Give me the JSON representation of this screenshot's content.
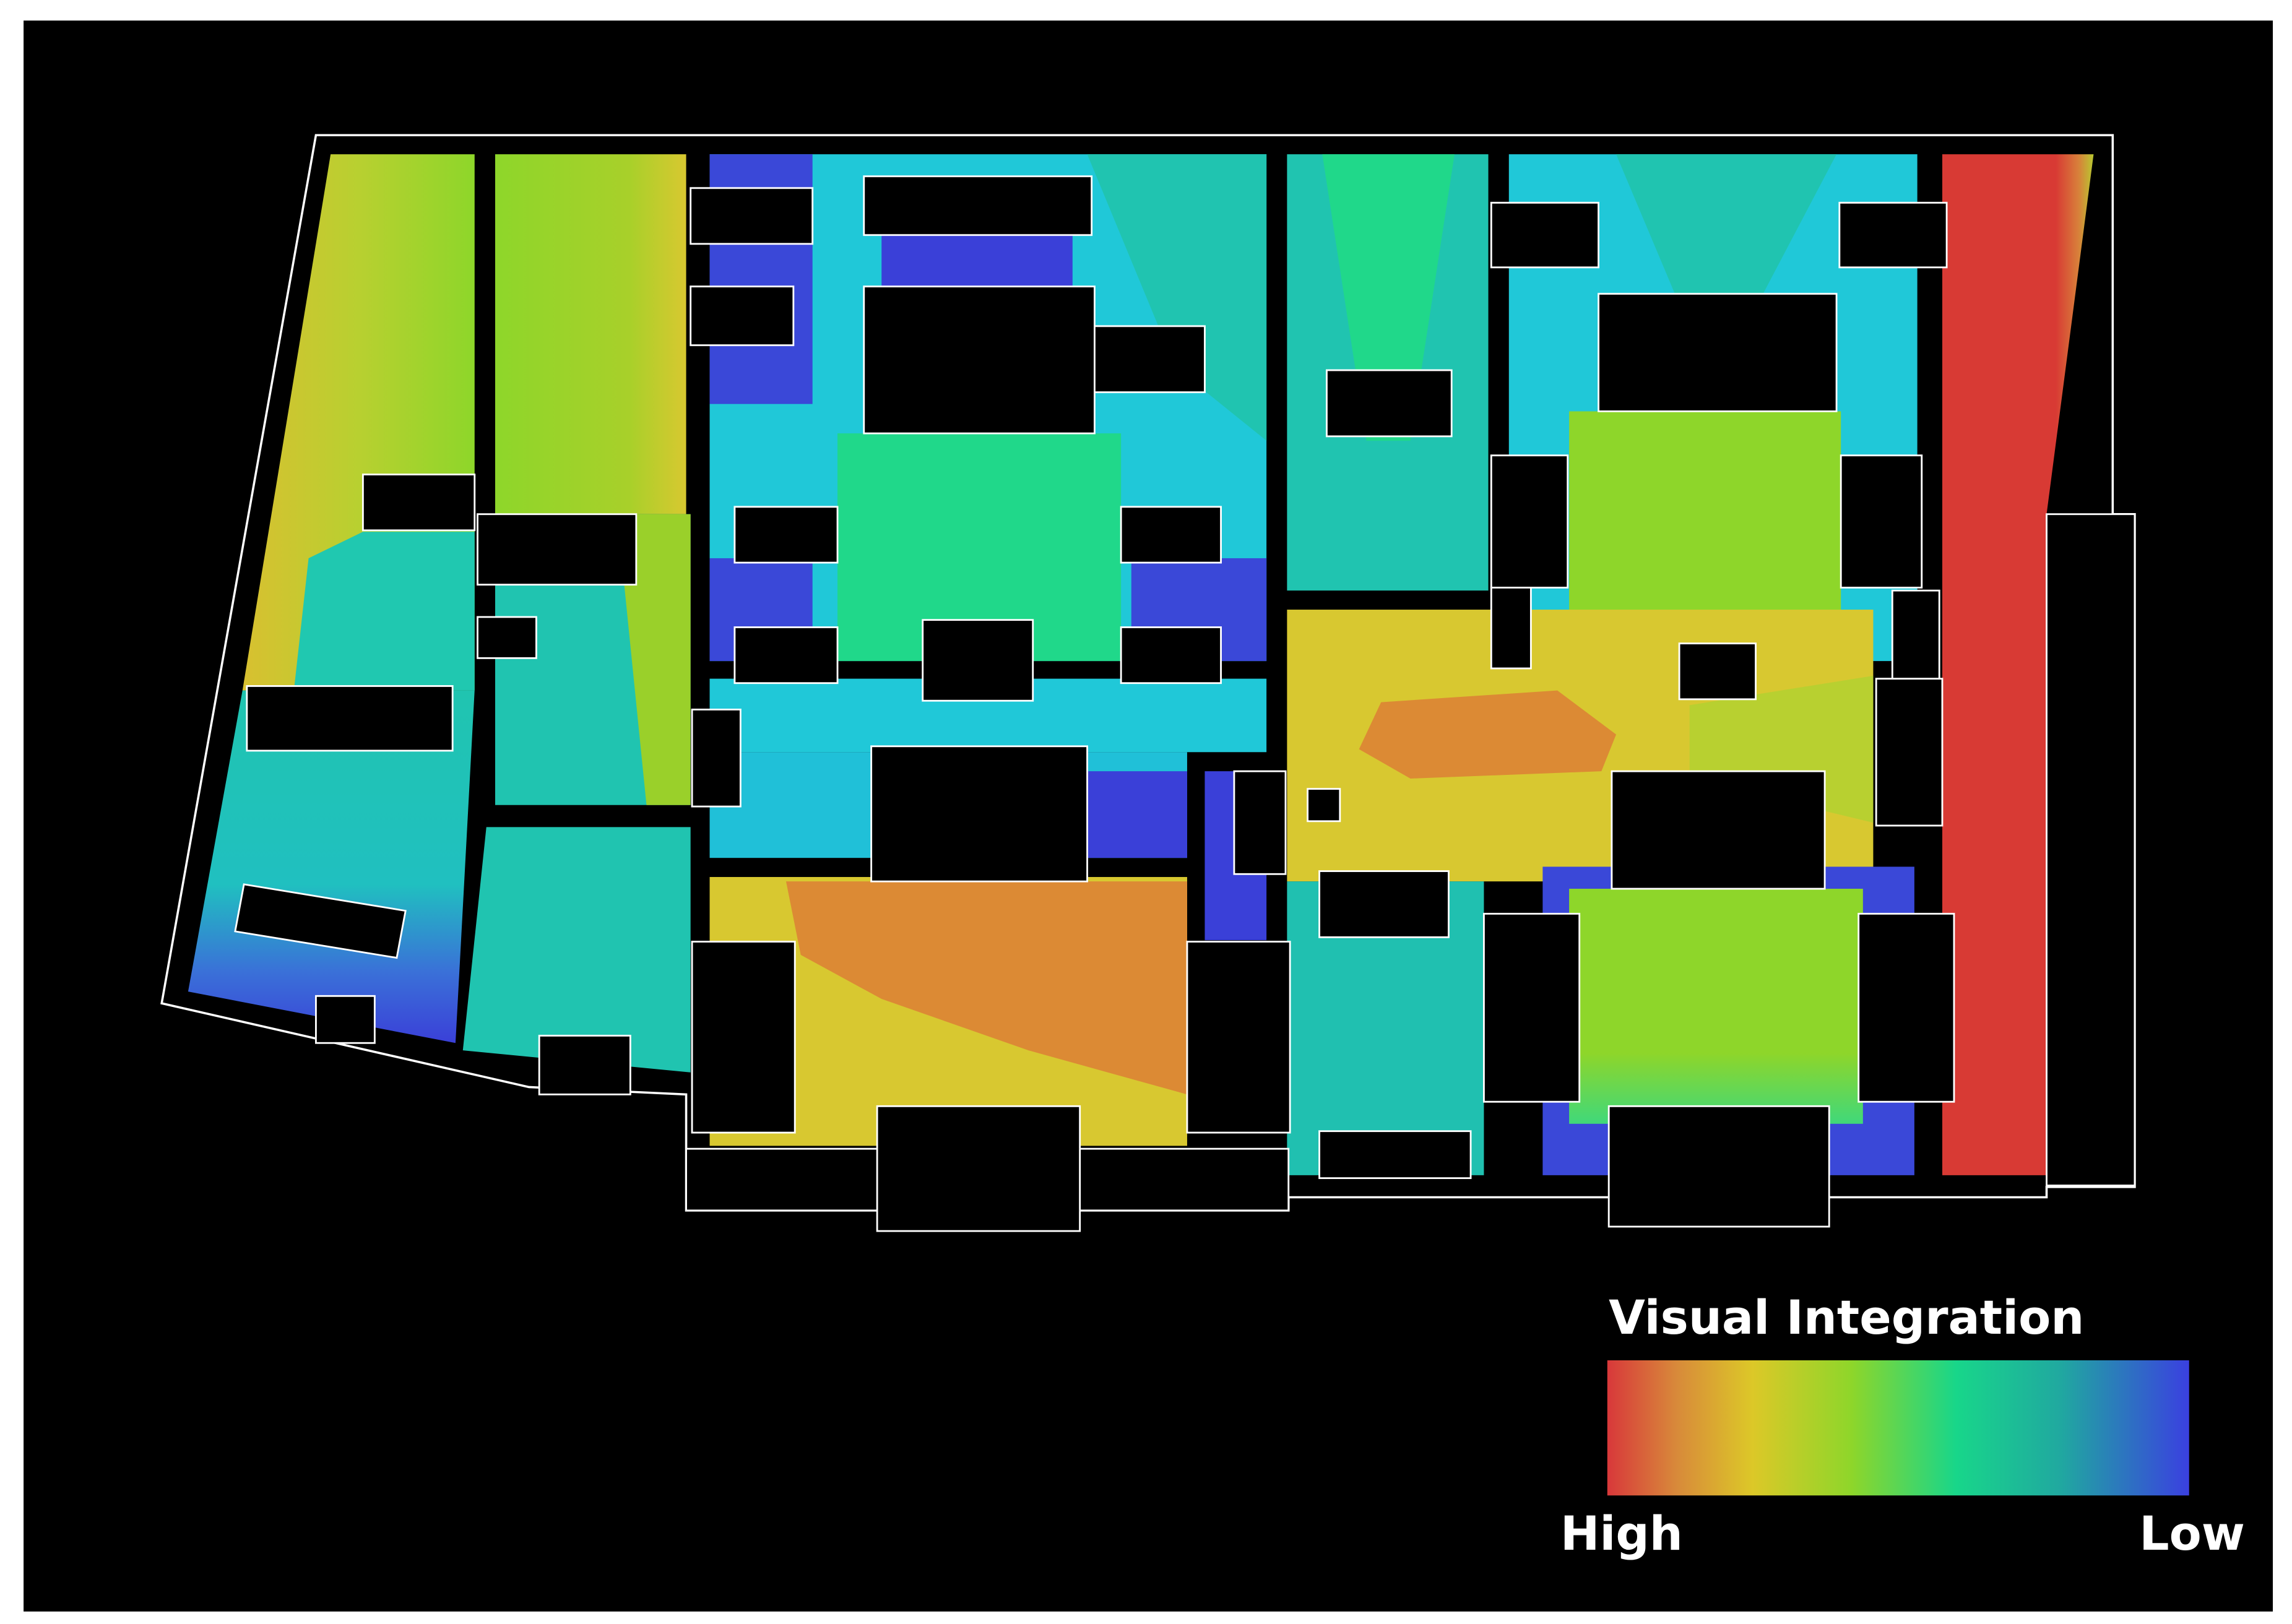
{
  "legend": {
    "title": "Visual Integration",
    "high_label": "High",
    "low_label": "Low"
  }
}
